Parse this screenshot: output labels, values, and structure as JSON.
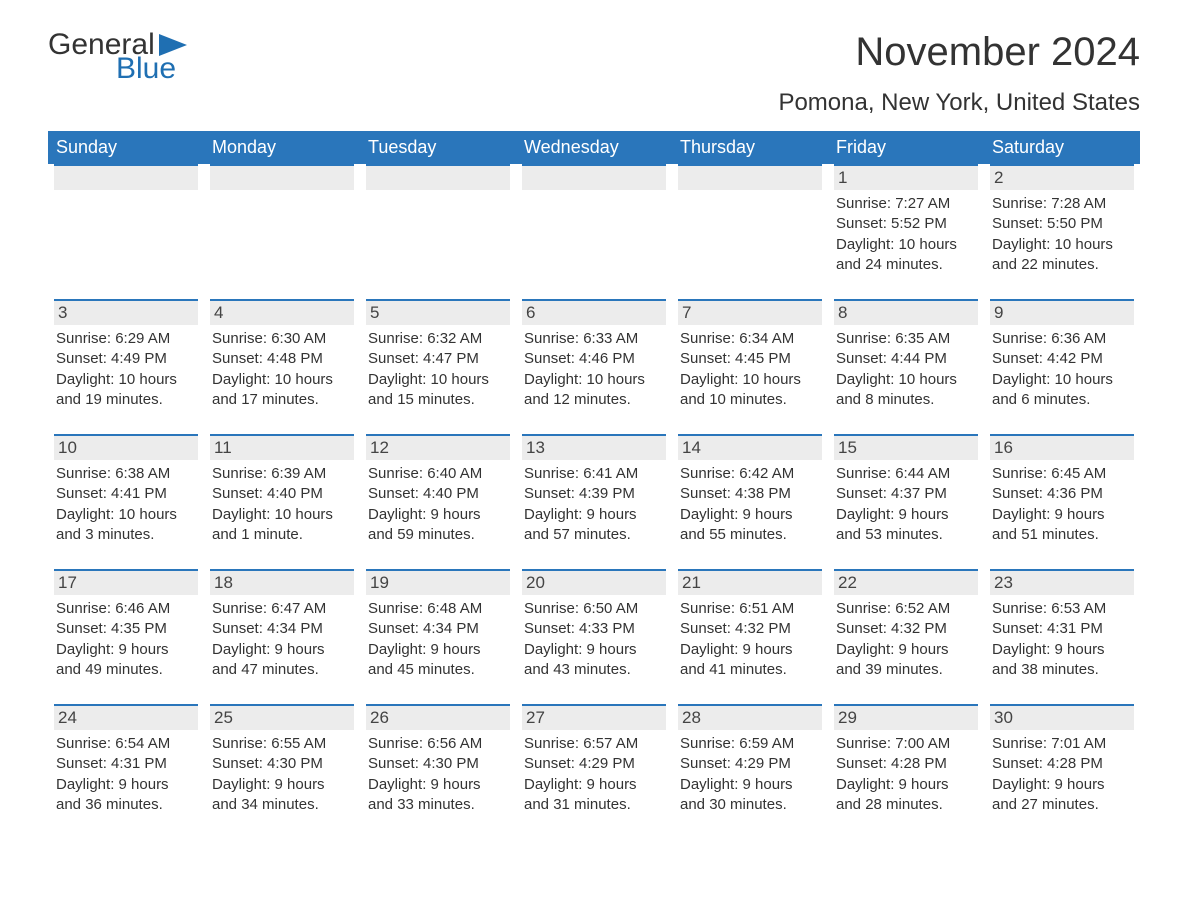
{
  "brand": {
    "word1": "General",
    "word2": "Blue"
  },
  "title": "November 2024",
  "location": "Pomona, New York, United States",
  "colors": {
    "header_bg": "#2a76bb",
    "header_text": "#ffffff",
    "daybar_bg": "#ececec",
    "daybar_border": "#2a76bb",
    "body_text": "#333333",
    "brand_blue": "#1f6fb2",
    "page_bg": "#ffffff"
  },
  "typography": {
    "title_fontsize": 40,
    "location_fontsize": 24,
    "weekday_fontsize": 18,
    "daynum_fontsize": 17,
    "body_fontsize": 15
  },
  "weekdays": [
    "Sunday",
    "Monday",
    "Tuesday",
    "Wednesday",
    "Thursday",
    "Friday",
    "Saturday"
  ],
  "first_weekday_index": 5,
  "days": [
    {
      "n": 1,
      "sunrise": "Sunrise: 7:27 AM",
      "sunset": "Sunset: 5:52 PM",
      "daylight": "Daylight: 10 hours and 24 minutes."
    },
    {
      "n": 2,
      "sunrise": "Sunrise: 7:28 AM",
      "sunset": "Sunset: 5:50 PM",
      "daylight": "Daylight: 10 hours and 22 minutes."
    },
    {
      "n": 3,
      "sunrise": "Sunrise: 6:29 AM",
      "sunset": "Sunset: 4:49 PM",
      "daylight": "Daylight: 10 hours and 19 minutes."
    },
    {
      "n": 4,
      "sunrise": "Sunrise: 6:30 AM",
      "sunset": "Sunset: 4:48 PM",
      "daylight": "Daylight: 10 hours and 17 minutes."
    },
    {
      "n": 5,
      "sunrise": "Sunrise: 6:32 AM",
      "sunset": "Sunset: 4:47 PM",
      "daylight": "Daylight: 10 hours and 15 minutes."
    },
    {
      "n": 6,
      "sunrise": "Sunrise: 6:33 AM",
      "sunset": "Sunset: 4:46 PM",
      "daylight": "Daylight: 10 hours and 12 minutes."
    },
    {
      "n": 7,
      "sunrise": "Sunrise: 6:34 AM",
      "sunset": "Sunset: 4:45 PM",
      "daylight": "Daylight: 10 hours and 10 minutes."
    },
    {
      "n": 8,
      "sunrise": "Sunrise: 6:35 AM",
      "sunset": "Sunset: 4:44 PM",
      "daylight": "Daylight: 10 hours and 8 minutes."
    },
    {
      "n": 9,
      "sunrise": "Sunrise: 6:36 AM",
      "sunset": "Sunset: 4:42 PM",
      "daylight": "Daylight: 10 hours and 6 minutes."
    },
    {
      "n": 10,
      "sunrise": "Sunrise: 6:38 AM",
      "sunset": "Sunset: 4:41 PM",
      "daylight": "Daylight: 10 hours and 3 minutes."
    },
    {
      "n": 11,
      "sunrise": "Sunrise: 6:39 AM",
      "sunset": "Sunset: 4:40 PM",
      "daylight": "Daylight: 10 hours and 1 minute."
    },
    {
      "n": 12,
      "sunrise": "Sunrise: 6:40 AM",
      "sunset": "Sunset: 4:40 PM",
      "daylight": "Daylight: 9 hours and 59 minutes."
    },
    {
      "n": 13,
      "sunrise": "Sunrise: 6:41 AM",
      "sunset": "Sunset: 4:39 PM",
      "daylight": "Daylight: 9 hours and 57 minutes."
    },
    {
      "n": 14,
      "sunrise": "Sunrise: 6:42 AM",
      "sunset": "Sunset: 4:38 PM",
      "daylight": "Daylight: 9 hours and 55 minutes."
    },
    {
      "n": 15,
      "sunrise": "Sunrise: 6:44 AM",
      "sunset": "Sunset: 4:37 PM",
      "daylight": "Daylight: 9 hours and 53 minutes."
    },
    {
      "n": 16,
      "sunrise": "Sunrise: 6:45 AM",
      "sunset": "Sunset: 4:36 PM",
      "daylight": "Daylight: 9 hours and 51 minutes."
    },
    {
      "n": 17,
      "sunrise": "Sunrise: 6:46 AM",
      "sunset": "Sunset: 4:35 PM",
      "daylight": "Daylight: 9 hours and 49 minutes."
    },
    {
      "n": 18,
      "sunrise": "Sunrise: 6:47 AM",
      "sunset": "Sunset: 4:34 PM",
      "daylight": "Daylight: 9 hours and 47 minutes."
    },
    {
      "n": 19,
      "sunrise": "Sunrise: 6:48 AM",
      "sunset": "Sunset: 4:34 PM",
      "daylight": "Daylight: 9 hours and 45 minutes."
    },
    {
      "n": 20,
      "sunrise": "Sunrise: 6:50 AM",
      "sunset": "Sunset: 4:33 PM",
      "daylight": "Daylight: 9 hours and 43 minutes."
    },
    {
      "n": 21,
      "sunrise": "Sunrise: 6:51 AM",
      "sunset": "Sunset: 4:32 PM",
      "daylight": "Daylight: 9 hours and 41 minutes."
    },
    {
      "n": 22,
      "sunrise": "Sunrise: 6:52 AM",
      "sunset": "Sunset: 4:32 PM",
      "daylight": "Daylight: 9 hours and 39 minutes."
    },
    {
      "n": 23,
      "sunrise": "Sunrise: 6:53 AM",
      "sunset": "Sunset: 4:31 PM",
      "daylight": "Daylight: 9 hours and 38 minutes."
    },
    {
      "n": 24,
      "sunrise": "Sunrise: 6:54 AM",
      "sunset": "Sunset: 4:31 PM",
      "daylight": "Daylight: 9 hours and 36 minutes."
    },
    {
      "n": 25,
      "sunrise": "Sunrise: 6:55 AM",
      "sunset": "Sunset: 4:30 PM",
      "daylight": "Daylight: 9 hours and 34 minutes."
    },
    {
      "n": 26,
      "sunrise": "Sunrise: 6:56 AM",
      "sunset": "Sunset: 4:30 PM",
      "daylight": "Daylight: 9 hours and 33 minutes."
    },
    {
      "n": 27,
      "sunrise": "Sunrise: 6:57 AM",
      "sunset": "Sunset: 4:29 PM",
      "daylight": "Daylight: 9 hours and 31 minutes."
    },
    {
      "n": 28,
      "sunrise": "Sunrise: 6:59 AM",
      "sunset": "Sunset: 4:29 PM",
      "daylight": "Daylight: 9 hours and 30 minutes."
    },
    {
      "n": 29,
      "sunrise": "Sunrise: 7:00 AM",
      "sunset": "Sunset: 4:28 PM",
      "daylight": "Daylight: 9 hours and 28 minutes."
    },
    {
      "n": 30,
      "sunrise": "Sunrise: 7:01 AM",
      "sunset": "Sunset: 4:28 PM",
      "daylight": "Daylight: 9 hours and 27 minutes."
    }
  ]
}
